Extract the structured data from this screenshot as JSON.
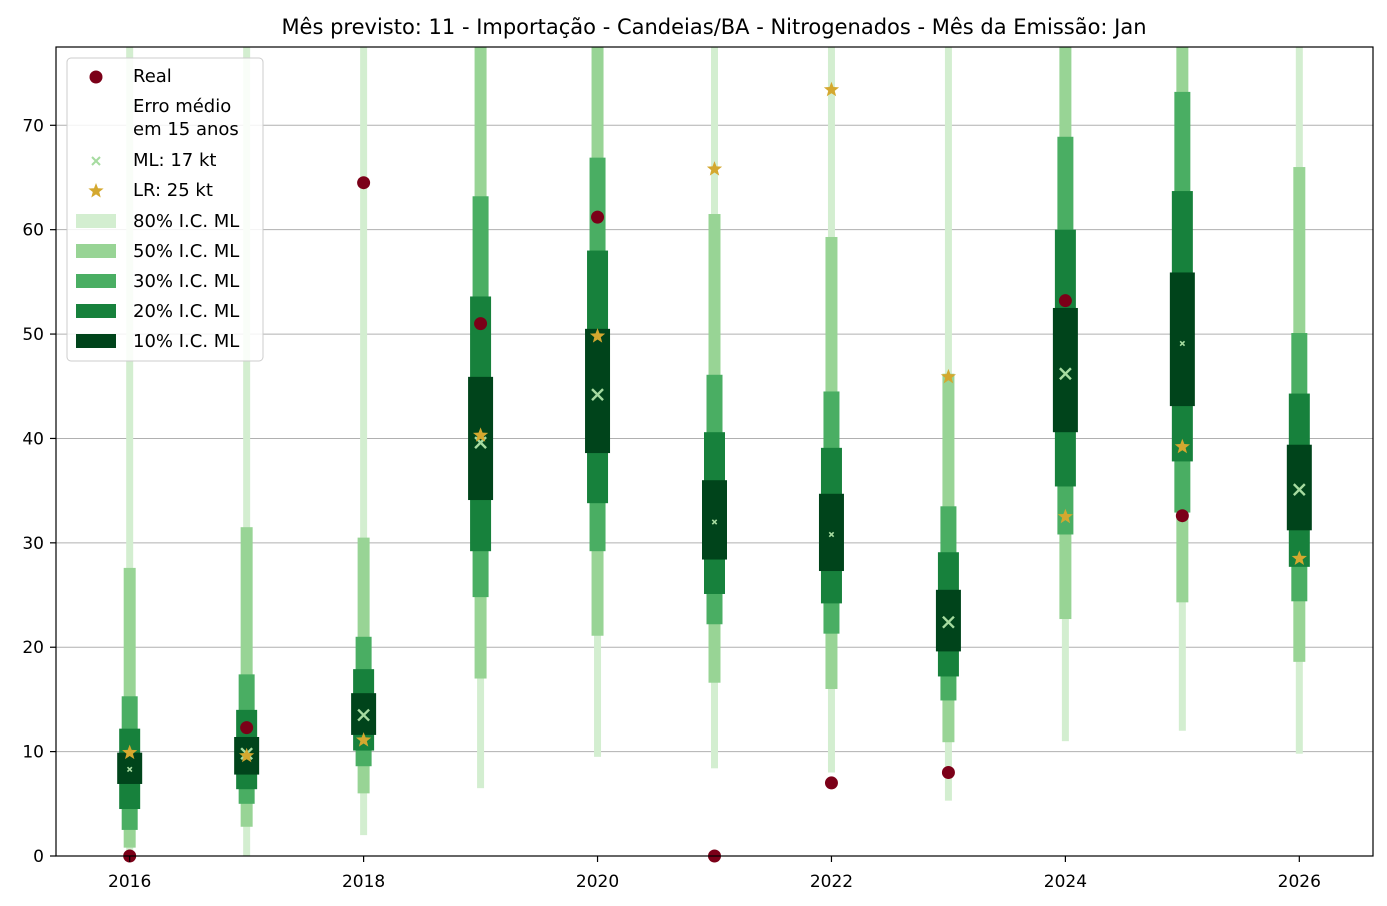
{
  "chart_data": {
    "type": "interval-forecast",
    "title": "Mês previsto: 11 - Importação - Candeias/BA - Nitrogenados - Mês da Emissão: Jan",
    "xlabel": "",
    "ylabel": "",
    "xlim": [
      2015.37,
      2026.63
    ],
    "ylim": [
      0,
      77.5
    ],
    "x_ticks": [
      2016,
      2018,
      2020,
      2022,
      2024,
      2026
    ],
    "y_ticks": [
      0,
      10,
      20,
      30,
      40,
      50,
      60,
      70
    ],
    "grid": "horizontal",
    "legend_position": "top-left",
    "colors": {
      "real": "#7b0018",
      "ml_marker": "#a6dba0",
      "lr_marker": "#d4a82f",
      "ci80": "#d3eed0",
      "ci50": "#98d495",
      "ci30": "#4aae63",
      "ci20": "#17813c",
      "ci10": "#00441b",
      "grid": "#b0b0b0"
    },
    "legend": {
      "real": "Real",
      "erro_line1": "Erro médio",
      "erro_line2": "em 15 anos",
      "ml": "ML: 17 kt",
      "lr": "LR: 25 kt",
      "ci80": "80% I.C. ML",
      "ci50": "50% I.C. ML",
      "ci30": "30% I.C. ML",
      "ci20": "20% I.C. ML",
      "ci10": "10% I.C. ML"
    },
    "years": [
      2016,
      2017,
      2018,
      2019,
      2020,
      2021,
      2022,
      2023,
      2024,
      2025,
      2026
    ],
    "real": [
      0,
      12.3,
      64.5,
      51.0,
      61.2,
      0,
      7.0,
      8.0,
      53.2,
      32.6,
      null
    ],
    "ml": [
      8.3,
      9.8,
      13.5,
      39.6,
      44.2,
      32.0,
      30.8,
      22.4,
      46.2,
      49.1,
      35.1
    ],
    "ml_marker_size": [
      "small",
      "large",
      "large",
      "large",
      "large",
      "small",
      "small",
      "large",
      "large",
      "small",
      "large"
    ],
    "lr": [
      9.9,
      9.6,
      11.1,
      40.3,
      49.8,
      65.8,
      73.4,
      45.9,
      32.5,
      39.2,
      28.5
    ],
    "intervals": {
      "ci80": [
        [
          0,
          77.5
        ],
        [
          0,
          77.5
        ],
        [
          2.0,
          77.5
        ],
        [
          6.5,
          77.5
        ],
        [
          9.5,
          77.5
        ],
        [
          8.4,
          77.5
        ],
        [
          8.0,
          77.5
        ],
        [
          5.3,
          77.5
        ],
        [
          11.0,
          77.5
        ],
        [
          12.0,
          77.5
        ],
        [
          9.8,
          77.5
        ]
      ],
      "ci50": [
        [
          0.8,
          27.6
        ],
        [
          2.8,
          31.5
        ],
        [
          6.0,
          30.5
        ],
        [
          17.0,
          77.5
        ],
        [
          21.1,
          77.5
        ],
        [
          16.6,
          61.5
        ],
        [
          16.0,
          59.3
        ],
        [
          10.9,
          46.2
        ],
        [
          22.7,
          77.5
        ],
        [
          24.3,
          77.5
        ],
        [
          18.6,
          66.0
        ]
      ],
      "ci30": [
        [
          2.5,
          15.3
        ],
        [
          5.0,
          17.4
        ],
        [
          8.6,
          21.0
        ],
        [
          24.8,
          63.2
        ],
        [
          29.2,
          66.9
        ],
        [
          22.2,
          46.1
        ],
        [
          21.3,
          44.5
        ],
        [
          14.9,
          33.5
        ],
        [
          30.8,
          68.9
        ],
        [
          32.9,
          73.2
        ],
        [
          24.4,
          50.1
        ]
      ],
      "ci20": [
        [
          4.5,
          12.2
        ],
        [
          6.4,
          14.0
        ],
        [
          10.1,
          17.9
        ],
        [
          29.2,
          53.6
        ],
        [
          33.8,
          58.0
        ],
        [
          25.1,
          40.6
        ],
        [
          24.2,
          39.1
        ],
        [
          17.2,
          29.1
        ],
        [
          35.4,
          60.0
        ],
        [
          37.8,
          63.7
        ],
        [
          27.7,
          44.3
        ]
      ],
      "ci10": [
        [
          6.9,
          9.9
        ],
        [
          7.8,
          11.4
        ],
        [
          11.6,
          15.6
        ],
        [
          34.1,
          45.9
        ],
        [
          38.6,
          50.5
        ],
        [
          28.4,
          36.0
        ],
        [
          27.3,
          34.7
        ],
        [
          19.6,
          25.5
        ],
        [
          40.6,
          52.5
        ],
        [
          43.1,
          55.9
        ],
        [
          31.2,
          39.4
        ]
      ]
    }
  }
}
